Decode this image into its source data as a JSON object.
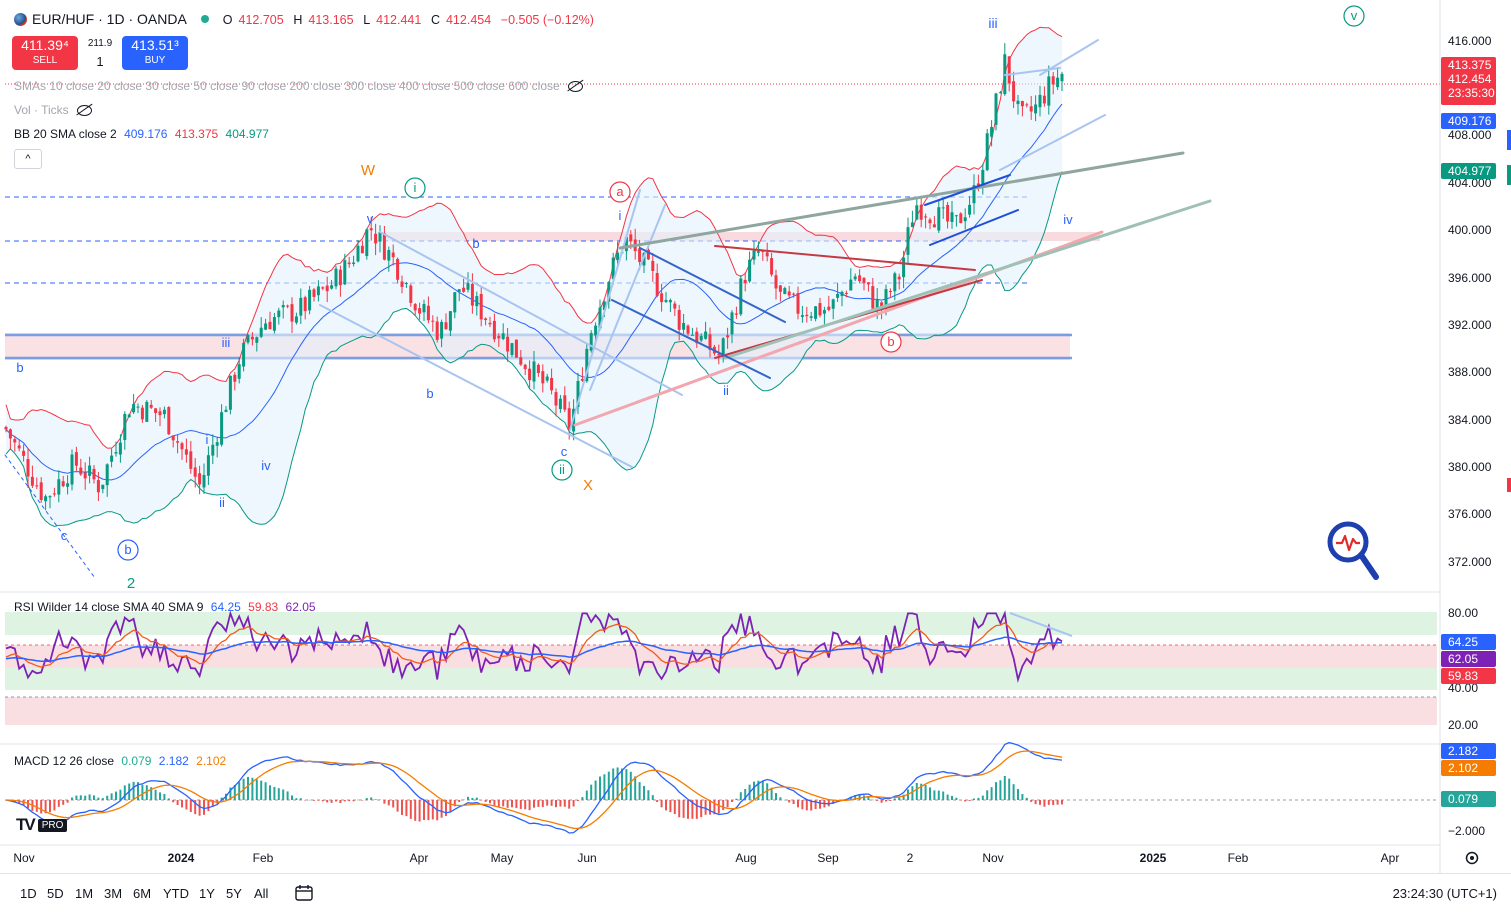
{
  "header": {
    "symbol": "EUR/HUF · 1D · OANDA",
    "open_label": "O",
    "open": "412.705",
    "high_label": "H",
    "high": "413.165",
    "low_label": "L",
    "low": "412.441",
    "close_label": "C",
    "close": "412.454",
    "change": "−0.505 (−0.12%)"
  },
  "trade": {
    "sell_price": "411.39⁴",
    "sell_label": "SELL",
    "spread": "211.9",
    "quantity": "1",
    "buy_price": "413.51³",
    "buy_label": "BUY"
  },
  "indicators": {
    "smas": "SMAs 10 close 20 close 30 close 50 close 90 close 200 close 300 close 400 close 500 close 600 close",
    "vol": "Vol · Ticks",
    "bb_name": "BB 20 SMA close 2",
    "bb_basis": "409.176",
    "bb_upper": "413.375",
    "bb_lower": "404.977",
    "collapse": "^"
  },
  "rsi": {
    "name": "RSI Wilder 14 close SMA 40 SMA 9",
    "v1": "64.25",
    "v2": "59.83",
    "v3": "62.05",
    "axis": [
      "80.00",
      "40.00",
      "20.00"
    ]
  },
  "macd": {
    "name": "MACD 12 26 close",
    "v1": "0.079",
    "v2": "2.182",
    "v3": "2.102",
    "axis": [
      "−2.000"
    ]
  },
  "price_axis": [
    "416.000",
    "408.000",
    "404.000",
    "400.000",
    "396.000",
    "392.000",
    "388.000",
    "384.000",
    "380.000",
    "376.000",
    "372.000"
  ],
  "price_badges": {
    "ask": "413.375",
    "last": "412.454",
    "countdown": "23:35:30",
    "bb_basis": "409.176",
    "bb_lower": "404.977"
  },
  "rsi_badges": {
    "rsi": "64.25",
    "sma9": "62.05",
    "sma40": "59.83"
  },
  "macd_badges": {
    "signal": "2.182",
    "macd": "2.102",
    "hist": "0.079"
  },
  "time_axis": [
    "Nov",
    "2024",
    "Feb",
    "Apr",
    "May",
    "Jun",
    "Aug",
    "Sep",
    "2",
    "Nov",
    "2025",
    "Feb",
    "Apr"
  ],
  "wave_labels": [
    "W",
    "i",
    "v",
    "b",
    "a",
    "a",
    "i",
    "c",
    "ii",
    "X",
    "b",
    "iii",
    "b",
    "i",
    "ii",
    "iv",
    "c",
    "b",
    "2",
    "ii",
    "iii",
    "iv",
    "v",
    "b"
  ],
  "timeframes": [
    "1D",
    "5D",
    "1M",
    "3M",
    "6M",
    "YTD",
    "1Y",
    "5Y",
    "All"
  ],
  "clock": "23:24:30 (UTC+1)",
  "logo": {
    "mark": "TV",
    "badge": "PRO"
  },
  "colors": {
    "up": "#089981",
    "down": "#f23645",
    "accent": "#2962ff",
    "bb": "#2962ff",
    "rsi": "#7e22b5"
  }
}
